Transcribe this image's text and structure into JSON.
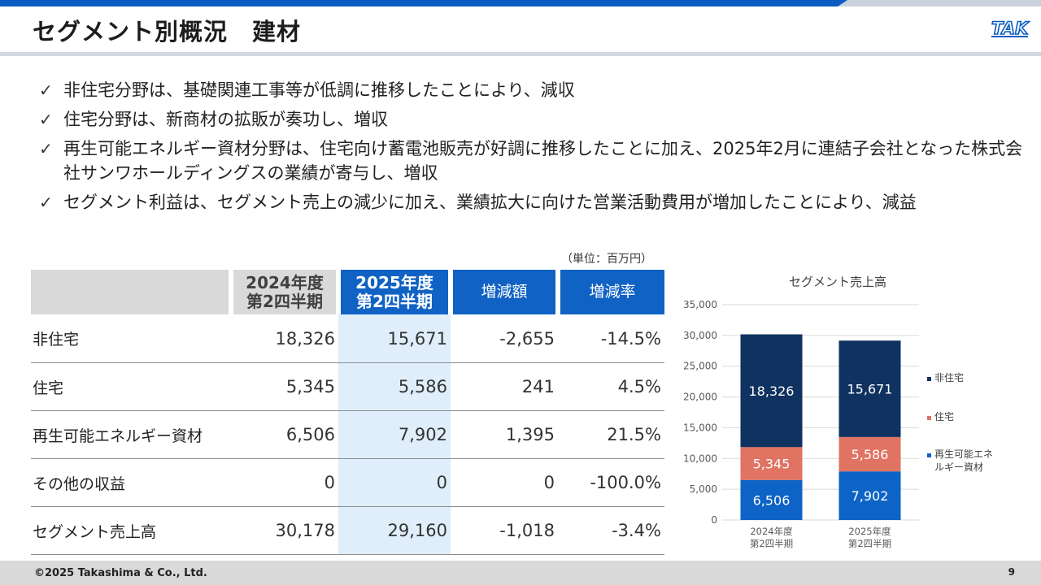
{
  "header": {
    "title": "セグメント別概況　建材",
    "logo_text": "TAK"
  },
  "bullets": [
    "非住宅分野は、基礎関連工事等が低調に推移したことにより、減収",
    "住宅分野は、新商材の拡販が奏功し、増収",
    "再生可能エネルギー資材分野は、住宅向け蓄電池販売が好調に推移したことに加え、2025年2月に連結子会社となった株式会社サンワホールディングスの業績が寄与し、増収",
    "セグメント利益は、セグメント売上の減少に加え、業績拡大に向けた営業活動費用が増加したことにより、減益"
  ],
  "table": {
    "unit": "（単位：百万円）",
    "headers": {
      "col2024_line1": "2024年度",
      "col2024_line2": "第2四半期",
      "col2025_line1": "2025年度",
      "col2025_line2": "第2四半期",
      "change": "増減額",
      "rate": "増減率"
    },
    "rows": [
      {
        "label": "非住宅",
        "v2024": "18,326",
        "v2025": "15,671",
        "change": "-2,655",
        "rate": "-14.5%"
      },
      {
        "label": "住宅",
        "v2024": "5,345",
        "v2025": "5,586",
        "change": "241",
        "rate": "4.5%"
      },
      {
        "label": "再生可能エネルギー資材",
        "v2024": "6,506",
        "v2025": "7,902",
        "change": "1,395",
        "rate": "21.5%"
      },
      {
        "label": "その他の収益",
        "v2024": "0",
        "v2025": "0",
        "change": "0",
        "rate": "-100.0%"
      },
      {
        "label": "セグメント売上高",
        "v2024": "30,178",
        "v2025": "29,160",
        "change": "-1,018",
        "rate": "-3.4%"
      }
    ]
  },
  "chart_data": {
    "type": "bar",
    "stacked": true,
    "title": "セグメント売上高",
    "categories": [
      [
        "2024年度",
        "第2四半期"
      ],
      [
        "2025年度",
        "第2四半期"
      ]
    ],
    "ylim": [
      0,
      35000
    ],
    "yticks": [
      "0",
      "5,000",
      "10,000",
      "15,000",
      "20,000",
      "25,000",
      "30,000",
      "35,000"
    ],
    "grid": true,
    "legend_position": "right",
    "series": [
      {
        "name": "再生可能エネルギー資材",
        "legend": [
          "再生可能エネ",
          "ルギー資材"
        ],
        "values": [
          6506,
          7902
        ],
        "labels": [
          "6,506",
          "7,902"
        ],
        "color": "#0d63c6"
      },
      {
        "name": "住宅",
        "legend": [
          "住宅"
        ],
        "values": [
          5345,
          5586
        ],
        "labels": [
          "5,345",
          "5,586"
        ],
        "color": "#e07362"
      },
      {
        "name": "非住宅",
        "legend": [
          "非住宅"
        ],
        "values": [
          18326,
          15671
        ],
        "labels": [
          "18,326",
          "15,671"
        ],
        "color": "#0f3260"
      }
    ]
  },
  "footer": {
    "copyright": "©2025 Takashima & Co., Ltd.",
    "page": "9"
  },
  "colors": {
    "accent": "#0a5cc2",
    "header_blue": "#1062c4",
    "highlight_col": "#dfeefa",
    "gray": "#d9d9d9"
  }
}
